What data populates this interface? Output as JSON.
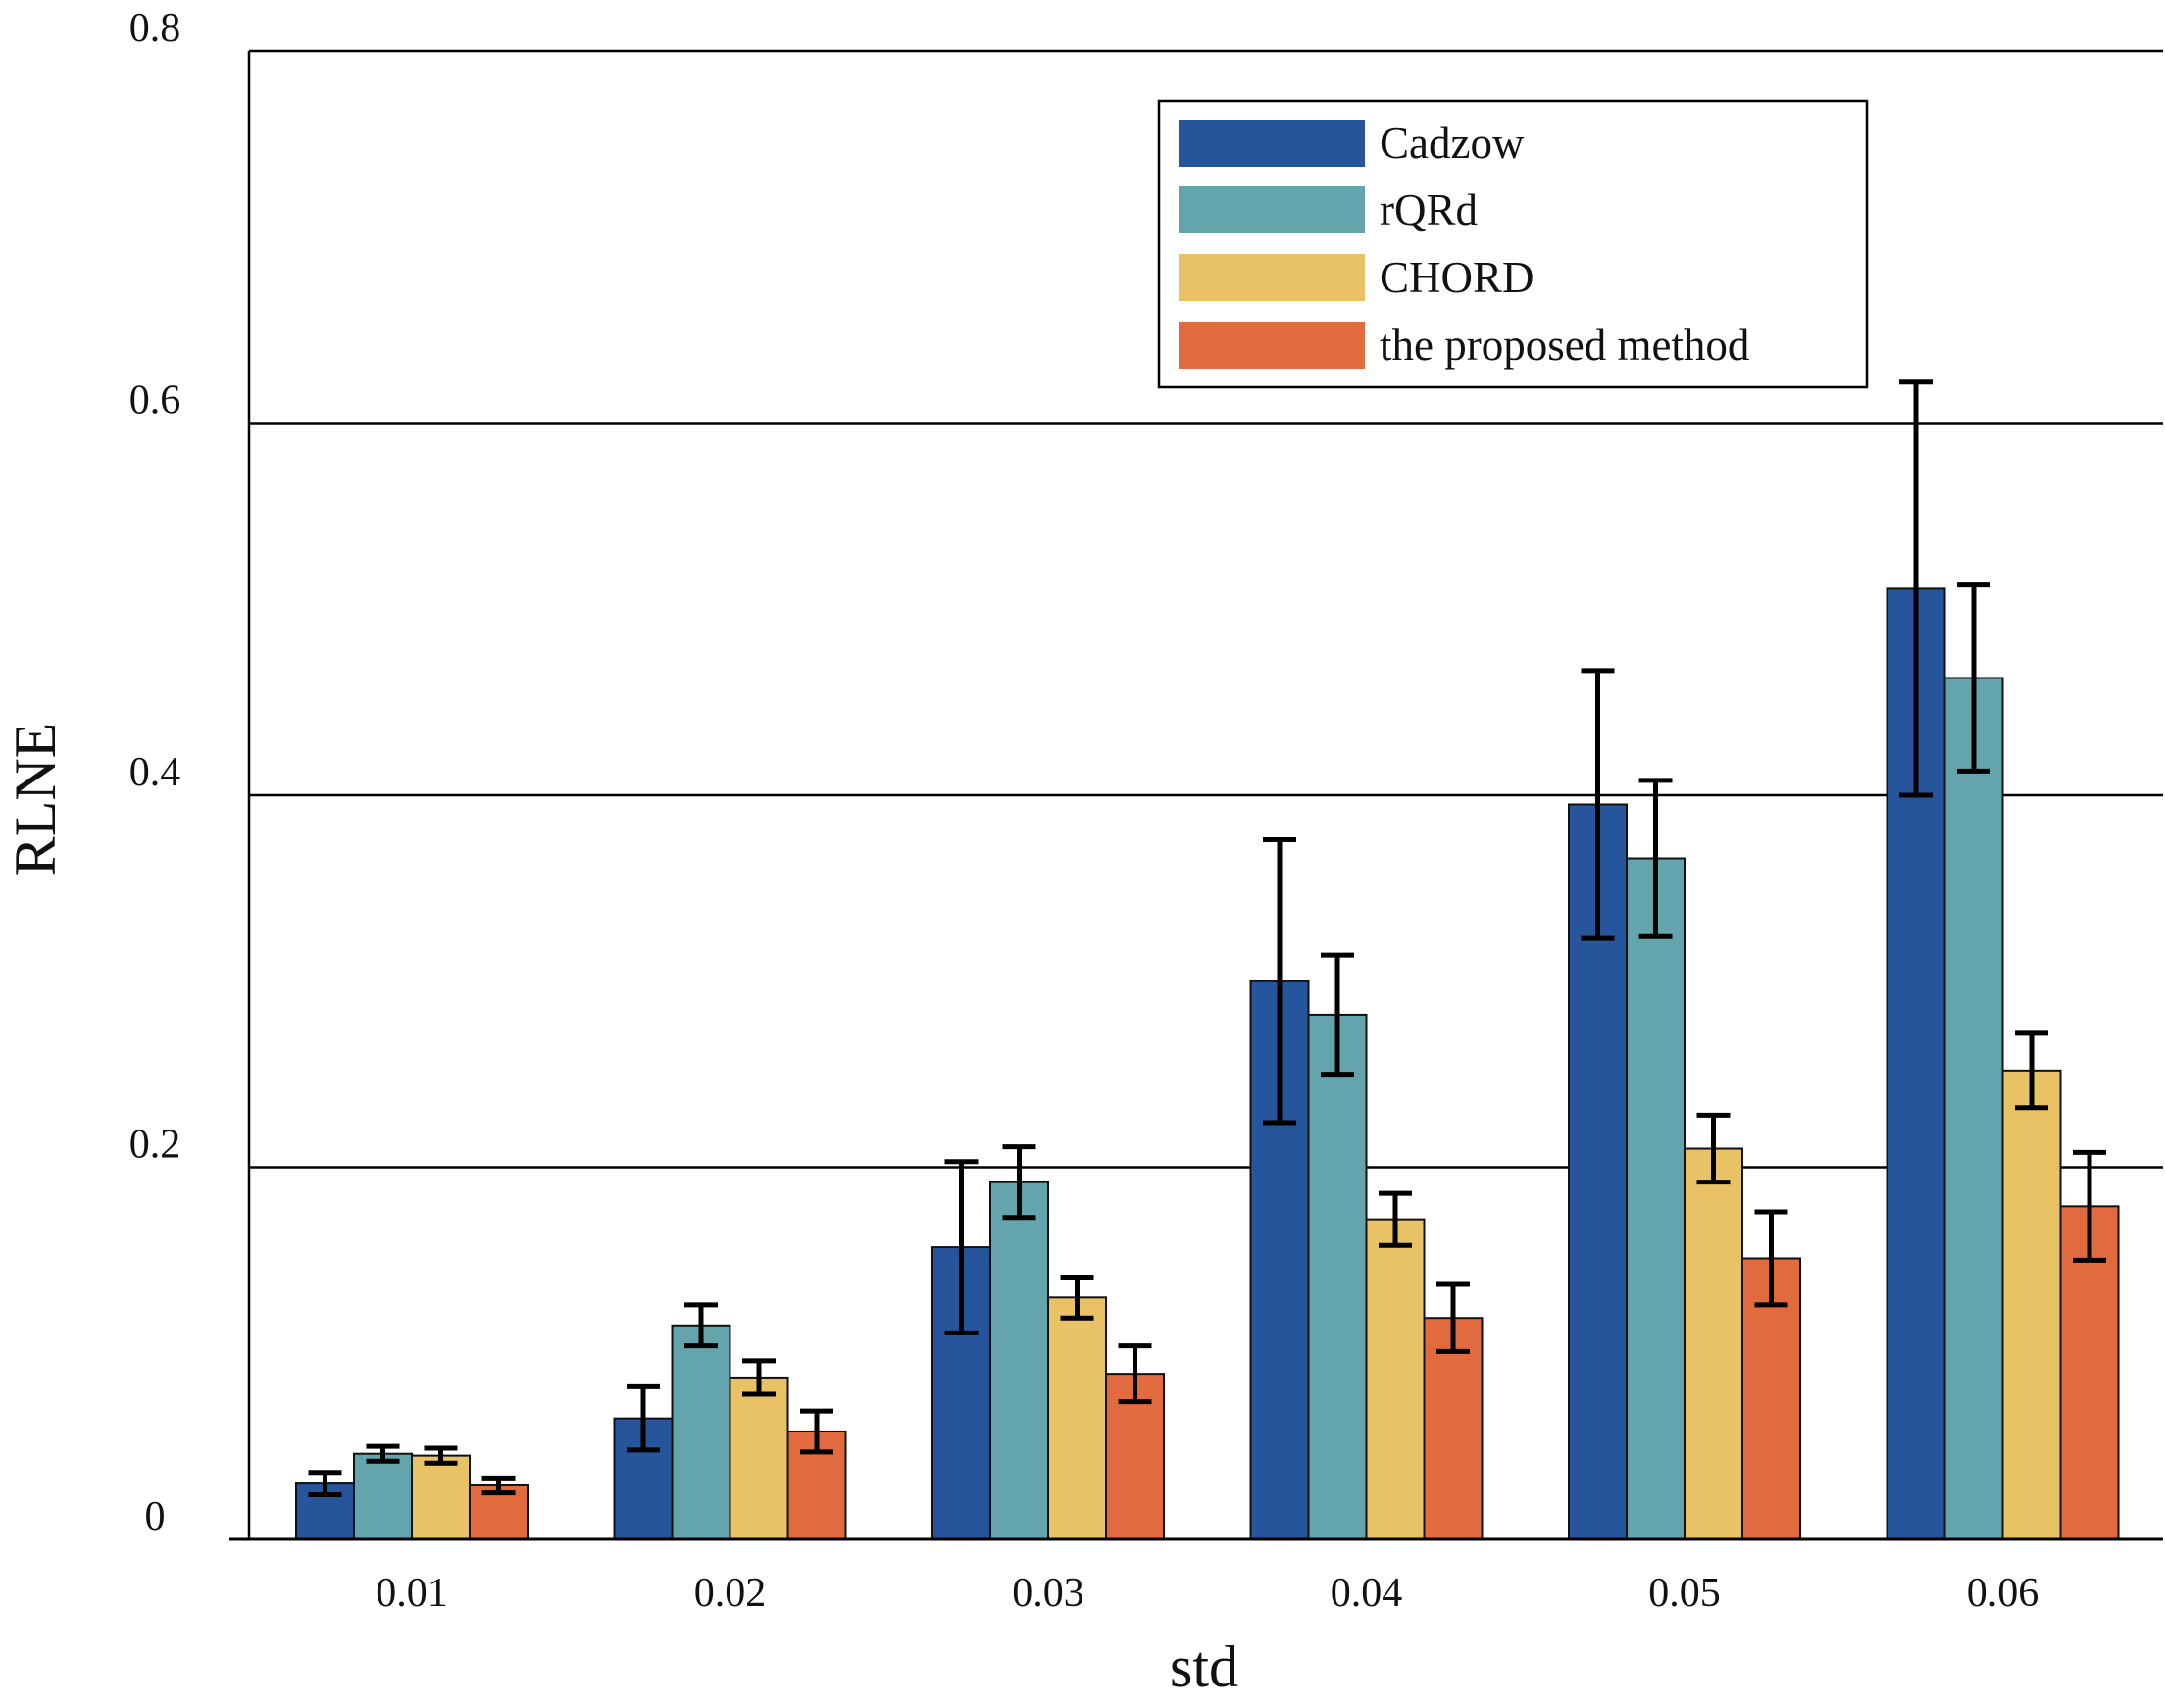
{
  "chart_data": {
    "type": "bar",
    "title": "",
    "xlabel": "std",
    "ylabel": "RLNE",
    "ylim": [
      0,
      0.8
    ],
    "yticks": [
      0,
      0.2,
      0.4,
      0.6,
      0.8
    ],
    "ytick_labels": [
      "0",
      "0.2",
      "0.4",
      "0.6",
      "0.8"
    ],
    "grid": "horizontal",
    "legend_position": "top-right",
    "categories": [
      "0.01",
      "0.02",
      "0.03",
      "0.04",
      "0.05",
      "0.06"
    ],
    "series": [
      {
        "name": "Cadzow",
        "color": "#26559C",
        "values": [
          0.03,
          0.065,
          0.157,
          0.3,
          0.395,
          0.511
        ],
        "errors": [
          0.006,
          0.017,
          0.046,
          0.076,
          0.072,
          0.111
        ]
      },
      {
        "name": "rQRd",
        "color": "#64A4AC",
        "values": [
          0.046,
          0.115,
          0.192,
          0.282,
          0.366,
          0.463
        ],
        "errors": [
          0.004,
          0.011,
          0.019,
          0.032,
          0.042,
          0.05
        ]
      },
      {
        "name": "CHORD",
        "color": "#EAC266",
        "values": [
          0.045,
          0.087,
          0.13,
          0.172,
          0.21,
          0.252
        ],
        "errors": [
          0.004,
          0.009,
          0.011,
          0.014,
          0.018,
          0.02
        ]
      },
      {
        "name": "the proposed method",
        "color": "#E26A3F",
        "values": [
          0.029,
          0.058,
          0.089,
          0.119,
          0.151,
          0.179
        ],
        "errors": [
          0.004,
          0.011,
          0.015,
          0.018,
          0.025,
          0.029
        ]
      }
    ]
  }
}
